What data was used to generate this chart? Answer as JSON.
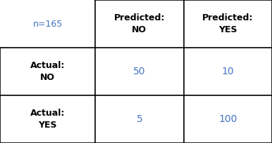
{
  "n_label": "n=165",
  "col_headers": [
    "Predicted:\nNO",
    "Predicted:\nYES"
  ],
  "row_headers": [
    "Actual:\nNO",
    "Actual:\nYES"
  ],
  "values": [
    [
      50,
      10
    ],
    [
      5,
      100
    ]
  ],
  "header_color": "#000000",
  "value_color": "#4472C4",
  "n_color": "#4472C4",
  "bg_color": "#FFFFFF",
  "border_color": "#000000",
  "header_fontsize": 9,
  "value_fontsize": 10,
  "n_fontsize": 9
}
